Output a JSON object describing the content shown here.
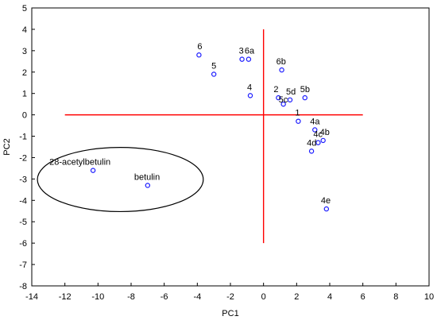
{
  "chart_data": {
    "type": "scatter",
    "xlabel": "PC1",
    "ylabel": "PC2",
    "xlim": [
      -14,
      10
    ],
    "ylim": [
      -8,
      5
    ],
    "xticks": [
      -14,
      -12,
      -10,
      -8,
      -6,
      -4,
      -2,
      0,
      2,
      4,
      6,
      8,
      10
    ],
    "yticks": [
      -8,
      -7,
      -6,
      -5,
      -4,
      -3,
      -2,
      -1,
      0,
      1,
      2,
      3,
      4,
      5
    ],
    "grid": false,
    "marker_color": "#1a1aff",
    "reference_line_color": "#ff0000",
    "reference_lines": {
      "horizontal": {
        "y": 0,
        "x_from": -12,
        "x_to": 6
      },
      "vertical": {
        "x": 0,
        "y_from": -6,
        "y_to": 4
      }
    },
    "highlight_ellipse": {
      "members": [
        "28-acetylbetulin",
        "betulin"
      ]
    },
    "points": [
      {
        "label": "6",
        "x": -3.9,
        "y": 2.8
      },
      {
        "label": "5",
        "x": -3.0,
        "y": 1.9
      },
      {
        "label": "3",
        "x": -1.3,
        "y": 2.6
      },
      {
        "label": "6a",
        "x": -0.9,
        "y": 2.6
      },
      {
        "label": "6b",
        "x": 1.1,
        "y": 2.1
      },
      {
        "label": "4",
        "x": -0.8,
        "y": 0.9
      },
      {
        "label": "2",
        "x": 0.9,
        "y": 0.8
      },
      {
        "label": "5c",
        "x": 1.2,
        "y": 0.5
      },
      {
        "label": "5d",
        "x": 1.6,
        "y": 0.7
      },
      {
        "label": "5b",
        "x": 2.5,
        "y": 0.8
      },
      {
        "label": "1",
        "x": 2.1,
        "y": -0.3
      },
      {
        "label": "4a",
        "x": 3.1,
        "y": -0.7
      },
      {
        "label": "4b",
        "x": 3.6,
        "y": -1.2
      },
      {
        "label": "4c",
        "x": 3.3,
        "y": -1.3
      },
      {
        "label": "4d",
        "x": 2.9,
        "y": -1.7
      },
      {
        "label": "4e",
        "x": 3.8,
        "y": -4.4
      },
      {
        "label": "28-acetylbetulin",
        "x": -10.3,
        "y": -2.6
      },
      {
        "label": "betulin",
        "x": -7.0,
        "y": -3.3
      }
    ]
  }
}
